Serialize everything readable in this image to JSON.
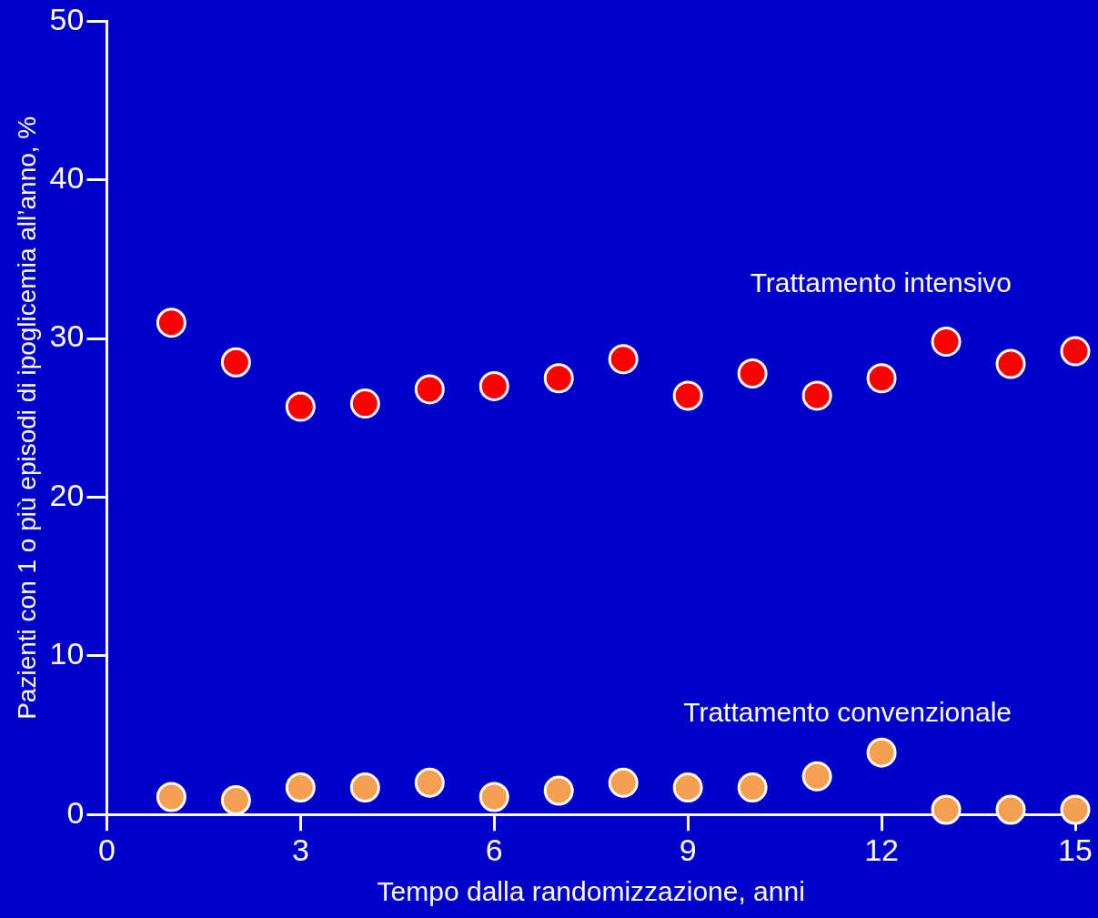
{
  "chart_data": {
    "type": "scatter",
    "xlabel": "Tempo dalla randomizzazione, anni",
    "ylabel": "Pazienti con 1 o più episodi di ipoglicemia all’anno, %",
    "x": [
      1,
      2,
      3,
      4,
      5,
      6,
      7,
      8,
      9,
      10,
      11,
      12,
      13,
      14,
      15
    ],
    "series": [
      {
        "name": "Trattamento intensivo",
        "color": "#ff0000",
        "values": [
          31.0,
          28.5,
          25.7,
          25.9,
          26.8,
          27.0,
          27.5,
          28.7,
          26.4,
          27.8,
          26.4,
          27.5,
          29.8,
          28.4,
          29.2
        ]
      },
      {
        "name": "Trattamento convenzionale",
        "color": "#f4a050",
        "values": [
          1.1,
          0.9,
          1.7,
          1.7,
          2.0,
          1.1,
          1.5,
          2.0,
          1.7,
          1.7,
          2.4,
          3.9,
          0.3,
          0.3,
          0.3
        ]
      }
    ],
    "xlim": [
      0,
      15
    ],
    "xticks": [
      0,
      3,
      6,
      9,
      12,
      15
    ],
    "ylim": [
      0,
      50
    ],
    "yticks": [
      0,
      10,
      20,
      30,
      40,
      50
    ],
    "grid": false,
    "legend": false,
    "marker": "circle"
  }
}
